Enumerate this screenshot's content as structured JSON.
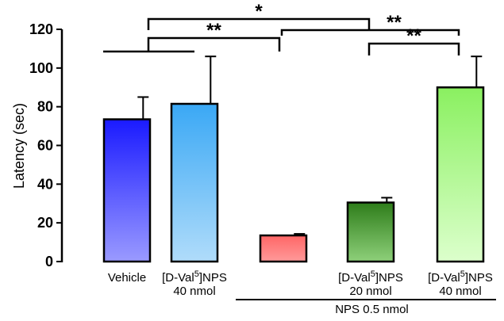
{
  "chart_data": {
    "type": "bar",
    "ylabel": "Latency (sec)",
    "ylim": [
      0,
      120
    ],
    "yticks": [
      0,
      20,
      40,
      60,
      80,
      100,
      120
    ],
    "grid": false,
    "categories": [
      {
        "line1": "Vehicle",
        "line2": "",
        "sup": ""
      },
      {
        "line1": "[D-Val",
        "sup": "5",
        "line1b": "]NPS",
        "line2": "40 nmol"
      },
      {
        "line1": "",
        "line2": "",
        "sup": ""
      },
      {
        "line1": "[D-Val",
        "sup": "5",
        "line1b": "]NPS",
        "line2": "20 nmol"
      },
      {
        "line1": "[D-Val",
        "sup": "5",
        "line1b": "]NPS",
        "line2": "40 nmol"
      }
    ],
    "values": [
      73.5,
      81.5,
      13.5,
      30.5,
      90
    ],
    "errors": [
      11.5,
      24.5,
      0.8,
      2.5,
      16
    ],
    "colors": [
      {
        "top": "#1a1aff",
        "bottom": "#9a9aff"
      },
      {
        "top": "#3aa8f5",
        "bottom": "#b0dcfa"
      },
      {
        "top": "#ff6666",
        "bottom": "#ff9a9a"
      },
      {
        "top": "#2e7d1a",
        "bottom": "#8ed07a"
      },
      {
        "top": "#8af060",
        "bottom": "#dcffcc"
      }
    ],
    "group_label": "NPS 0.5 nmol",
    "group_members": [
      2,
      3,
      4
    ],
    "significance": [
      {
        "from": 0.5,
        "to": 2,
        "label": "**",
        "level": 1
      },
      {
        "from": 0.5,
        "to": 3,
        "label": "*",
        "level": 2
      },
      {
        "from": 2,
        "to": 4,
        "label": "**",
        "level": 3
      },
      {
        "from": 3,
        "to": 4,
        "label": "**",
        "level": 4
      }
    ]
  }
}
